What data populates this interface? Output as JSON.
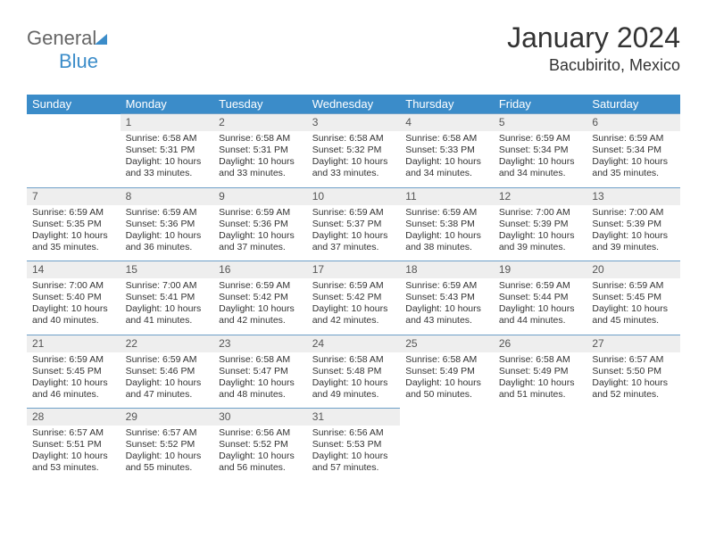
{
  "logo": {
    "part1": "General",
    "part2": "Blue"
  },
  "header": {
    "title": "January 2024",
    "location": "Bacubirito, Mexico"
  },
  "colors": {
    "header_bg": "#3b8cc9",
    "header_text": "#ffffff",
    "daynum_bg": "#eeeeee",
    "daynum_border": "#6d9fc8",
    "text": "#333333",
    "page_bg": "#ffffff"
  },
  "typography": {
    "title_fontsize": 32,
    "subtitle_fontsize": 18,
    "dayhead_fontsize": 13,
    "daynum_fontsize": 12,
    "cell_fontsize": 10.5
  },
  "dayNames": [
    "Sunday",
    "Monday",
    "Tuesday",
    "Wednesday",
    "Thursday",
    "Friday",
    "Saturday"
  ],
  "weeks": [
    [
      null,
      {
        "n": "1",
        "sunrise": "6:58 AM",
        "sunset": "5:31 PM",
        "daylight": "10 hours and 33 minutes."
      },
      {
        "n": "2",
        "sunrise": "6:58 AM",
        "sunset": "5:31 PM",
        "daylight": "10 hours and 33 minutes."
      },
      {
        "n": "3",
        "sunrise": "6:58 AM",
        "sunset": "5:32 PM",
        "daylight": "10 hours and 33 minutes."
      },
      {
        "n": "4",
        "sunrise": "6:58 AM",
        "sunset": "5:33 PM",
        "daylight": "10 hours and 34 minutes."
      },
      {
        "n": "5",
        "sunrise": "6:59 AM",
        "sunset": "5:34 PM",
        "daylight": "10 hours and 34 minutes."
      },
      {
        "n": "6",
        "sunrise": "6:59 AM",
        "sunset": "5:34 PM",
        "daylight": "10 hours and 35 minutes."
      }
    ],
    [
      {
        "n": "7",
        "sunrise": "6:59 AM",
        "sunset": "5:35 PM",
        "daylight": "10 hours and 35 minutes."
      },
      {
        "n": "8",
        "sunrise": "6:59 AM",
        "sunset": "5:36 PM",
        "daylight": "10 hours and 36 minutes."
      },
      {
        "n": "9",
        "sunrise": "6:59 AM",
        "sunset": "5:36 PM",
        "daylight": "10 hours and 37 minutes."
      },
      {
        "n": "10",
        "sunrise": "6:59 AM",
        "sunset": "5:37 PM",
        "daylight": "10 hours and 37 minutes."
      },
      {
        "n": "11",
        "sunrise": "6:59 AM",
        "sunset": "5:38 PM",
        "daylight": "10 hours and 38 minutes."
      },
      {
        "n": "12",
        "sunrise": "7:00 AM",
        "sunset": "5:39 PM",
        "daylight": "10 hours and 39 minutes."
      },
      {
        "n": "13",
        "sunrise": "7:00 AM",
        "sunset": "5:39 PM",
        "daylight": "10 hours and 39 minutes."
      }
    ],
    [
      {
        "n": "14",
        "sunrise": "7:00 AM",
        "sunset": "5:40 PM",
        "daylight": "10 hours and 40 minutes."
      },
      {
        "n": "15",
        "sunrise": "7:00 AM",
        "sunset": "5:41 PM",
        "daylight": "10 hours and 41 minutes."
      },
      {
        "n": "16",
        "sunrise": "6:59 AM",
        "sunset": "5:42 PM",
        "daylight": "10 hours and 42 minutes."
      },
      {
        "n": "17",
        "sunrise": "6:59 AM",
        "sunset": "5:42 PM",
        "daylight": "10 hours and 42 minutes."
      },
      {
        "n": "18",
        "sunrise": "6:59 AM",
        "sunset": "5:43 PM",
        "daylight": "10 hours and 43 minutes."
      },
      {
        "n": "19",
        "sunrise": "6:59 AM",
        "sunset": "5:44 PM",
        "daylight": "10 hours and 44 minutes."
      },
      {
        "n": "20",
        "sunrise": "6:59 AM",
        "sunset": "5:45 PM",
        "daylight": "10 hours and 45 minutes."
      }
    ],
    [
      {
        "n": "21",
        "sunrise": "6:59 AM",
        "sunset": "5:45 PM",
        "daylight": "10 hours and 46 minutes."
      },
      {
        "n": "22",
        "sunrise": "6:59 AM",
        "sunset": "5:46 PM",
        "daylight": "10 hours and 47 minutes."
      },
      {
        "n": "23",
        "sunrise": "6:58 AM",
        "sunset": "5:47 PM",
        "daylight": "10 hours and 48 minutes."
      },
      {
        "n": "24",
        "sunrise": "6:58 AM",
        "sunset": "5:48 PM",
        "daylight": "10 hours and 49 minutes."
      },
      {
        "n": "25",
        "sunrise": "6:58 AM",
        "sunset": "5:49 PM",
        "daylight": "10 hours and 50 minutes."
      },
      {
        "n": "26",
        "sunrise": "6:58 AM",
        "sunset": "5:49 PM",
        "daylight": "10 hours and 51 minutes."
      },
      {
        "n": "27",
        "sunrise": "6:57 AM",
        "sunset": "5:50 PM",
        "daylight": "10 hours and 52 minutes."
      }
    ],
    [
      {
        "n": "28",
        "sunrise": "6:57 AM",
        "sunset": "5:51 PM",
        "daylight": "10 hours and 53 minutes."
      },
      {
        "n": "29",
        "sunrise": "6:57 AM",
        "sunset": "5:52 PM",
        "daylight": "10 hours and 55 minutes."
      },
      {
        "n": "30",
        "sunrise": "6:56 AM",
        "sunset": "5:52 PM",
        "daylight": "10 hours and 56 minutes."
      },
      {
        "n": "31",
        "sunrise": "6:56 AM",
        "sunset": "5:53 PM",
        "daylight": "10 hours and 57 minutes."
      },
      null,
      null,
      null
    ]
  ],
  "labels": {
    "sunrise": "Sunrise:",
    "sunset": "Sunset:",
    "daylight": "Daylight:"
  }
}
